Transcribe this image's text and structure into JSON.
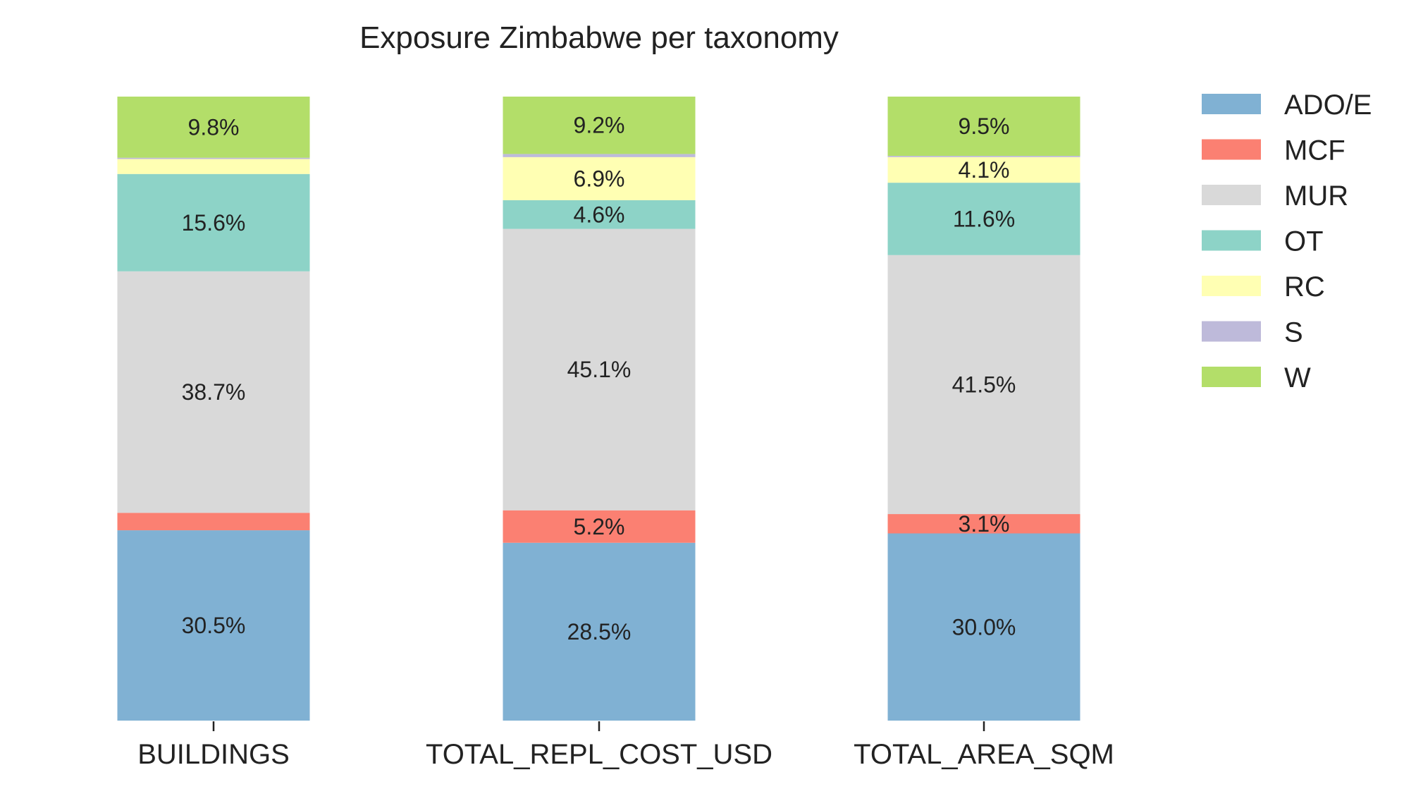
{
  "chart_data": {
    "type": "bar",
    "stacked": true,
    "title": "Exposure Zimbabwe per taxonomy",
    "xlabel": "",
    "ylabel": "",
    "categories": [
      "BUILDINGS",
      "TOTAL_REPL_COST_USD",
      "TOTAL_AREA_SQM"
    ],
    "series": [
      {
        "name": "ADO/E",
        "color": "#80b1d3",
        "values": [
          30.5,
          28.5,
          30.0
        ],
        "labels": [
          "30.5%",
          "28.5%",
          "30.0%"
        ]
      },
      {
        "name": "MCF",
        "color": "#fb8072",
        "values": [
          2.8,
          5.2,
          3.1
        ],
        "labels": [
          "",
          "5.2%",
          "3.1%"
        ]
      },
      {
        "name": "MUR",
        "color": "#d9d9d9",
        "values": [
          38.7,
          45.1,
          41.5
        ],
        "labels": [
          "38.7%",
          "45.1%",
          "41.5%"
        ]
      },
      {
        "name": "OT",
        "color": "#8dd3c7",
        "values": [
          15.6,
          4.6,
          11.6
        ],
        "labels": [
          "15.6%",
          "4.6%",
          "11.6%"
        ]
      },
      {
        "name": "RC",
        "color": "#ffffb3",
        "values": [
          2.4,
          6.9,
          4.1
        ],
        "labels": [
          "",
          "6.9%",
          "4.1%"
        ]
      },
      {
        "name": "S",
        "color": "#bebada",
        "values": [
          0.2,
          0.5,
          0.2
        ],
        "labels": [
          "",
          "",
          ""
        ]
      },
      {
        "name": "W",
        "color": "#b3de69",
        "values": [
          9.8,
          9.2,
          9.5
        ],
        "labels": [
          "9.8%",
          "9.2%",
          "9.5%"
        ]
      }
    ],
    "ylim": [
      0,
      100
    ],
    "grid": false,
    "legend_position": "top-right, outside"
  }
}
